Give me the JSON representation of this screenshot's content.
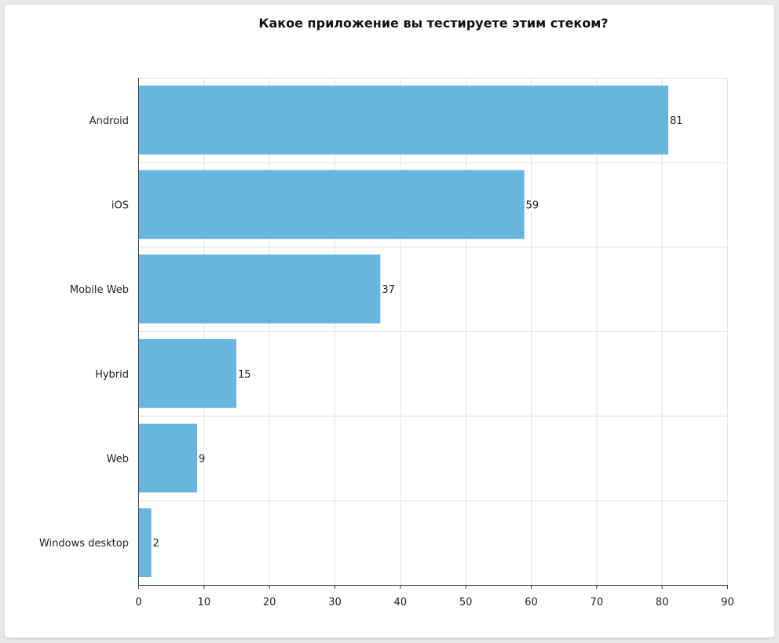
{
  "chart_data": {
    "type": "bar",
    "orientation": "horizontal",
    "title": "Какое приложение вы тестируете этим стеком?",
    "categories": [
      "Android",
      "iOS",
      "Mobile Web",
      "Hybrid",
      "Web",
      "Windows desktop"
    ],
    "values": [
      81,
      59,
      37,
      15,
      9,
      2
    ],
    "xlim": [
      0,
      90
    ],
    "xticks": [
      "0",
      "10",
      "20",
      "30",
      "40",
      "50",
      "60",
      "70",
      "80",
      "90"
    ],
    "xlabel": "",
    "ylabel": "",
    "grid": true,
    "bar_color": "#67b6db"
  }
}
